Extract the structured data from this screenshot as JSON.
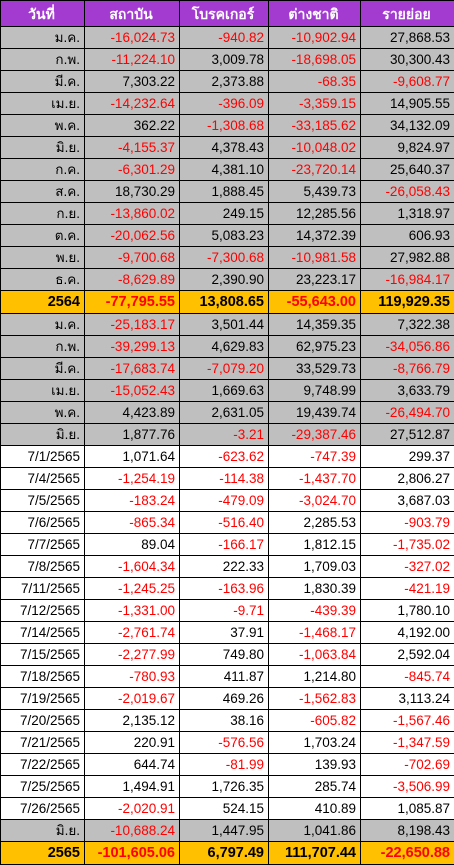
{
  "columns": [
    "วันที่",
    "สถาบัน",
    "โบรคเกอร์",
    "ต่างชาติ",
    "รายย่อย"
  ],
  "rows": [
    {
      "type": "gray",
      "cells": [
        "ม.ค.",
        "-16,024.73",
        "-940.82",
        "-10,902.94",
        "27,868.53"
      ]
    },
    {
      "type": "gray",
      "cells": [
        "ก.พ.",
        "-11,224.10",
        "3,009.78",
        "-18,698.05",
        "30,300.43"
      ]
    },
    {
      "type": "gray",
      "cells": [
        "มี.ค.",
        "7,303.22",
        "2,373.88",
        "-68.35",
        "-9,608.77"
      ]
    },
    {
      "type": "gray",
      "cells": [
        "เม.ย.",
        "-14,232.64",
        "-396.09",
        "-3,359.15",
        "14,905.55"
      ]
    },
    {
      "type": "gray",
      "cells": [
        "พ.ค.",
        "362.22",
        "-1,308.68",
        "-33,185.62",
        "34,132.09"
      ]
    },
    {
      "type": "gray",
      "cells": [
        "มิ.ย.",
        "-4,155.37",
        "4,378.43",
        "-10,048.02",
        "9,824.97"
      ]
    },
    {
      "type": "gray",
      "cells": [
        "ก.ค.",
        "-6,301.29",
        "4,381.10",
        "-23,720.14",
        "25,640.37"
      ]
    },
    {
      "type": "gray",
      "cells": [
        "ส.ค.",
        "18,730.29",
        "1,888.45",
        "5,439.73",
        "-26,058.43"
      ]
    },
    {
      "type": "gray",
      "cells": [
        "ก.ย.",
        "-13,860.02",
        "249.15",
        "12,285.56",
        "1,318.97"
      ]
    },
    {
      "type": "gray",
      "cells": [
        "ต.ค.",
        "-20,062.56",
        "5,083.23",
        "14,372.39",
        "606.93"
      ]
    },
    {
      "type": "gray",
      "cells": [
        "พ.ย.",
        "-9,700.68",
        "-7,300.68",
        "-10,981.58",
        "27,982.88"
      ]
    },
    {
      "type": "gray",
      "cells": [
        "ธ.ค.",
        "-8,629.89",
        "2,390.90",
        "23,223.17",
        "-16,984.17"
      ]
    },
    {
      "type": "total",
      "cells": [
        "2564",
        "-77,795.55",
        "13,808.65",
        "-55,643.00",
        "119,929.35"
      ]
    },
    {
      "type": "gray",
      "cells": [
        "ม.ค.",
        "-25,183.17",
        "3,501.44",
        "14,359.35",
        "7,322.38"
      ]
    },
    {
      "type": "gray",
      "cells": [
        "ก.พ.",
        "-39,299.13",
        "4,629.83",
        "62,975.23",
        "-34,056.86"
      ]
    },
    {
      "type": "gray",
      "cells": [
        "มี.ค.",
        "-17,683.74",
        "-7,079.20",
        "33,529.73",
        "-8,766.79"
      ]
    },
    {
      "type": "gray",
      "cells": [
        "เม.ย.",
        "-15,052.43",
        "1,669.63",
        "9,748.99",
        "3,633.79"
      ]
    },
    {
      "type": "gray",
      "cells": [
        "พ.ค.",
        "4,423.89",
        "2,631.05",
        "19,439.74",
        "-26,494.70"
      ]
    },
    {
      "type": "gray",
      "cells": [
        "มิ.ย.",
        "1,877.76",
        "-3.21",
        "-29,387.46",
        "27,512.87"
      ]
    },
    {
      "type": "white",
      "cells": [
        "7/1/2565",
        "1,071.64",
        "-623.62",
        "-747.39",
        "299.37"
      ]
    },
    {
      "type": "white",
      "cells": [
        "7/4/2565",
        "-1,254.19",
        "-114.38",
        "-1,437.70",
        "2,806.27"
      ]
    },
    {
      "type": "white",
      "cells": [
        "7/5/2565",
        "-183.24",
        "-479.09",
        "-3,024.70",
        "3,687.03"
      ]
    },
    {
      "type": "white",
      "cells": [
        "7/6/2565",
        "-865.34",
        "-516.40",
        "2,285.53",
        "-903.79"
      ]
    },
    {
      "type": "white",
      "cells": [
        "7/7/2565",
        "89.04",
        "-166.17",
        "1,812.15",
        "-1,735.02"
      ]
    },
    {
      "type": "white",
      "cells": [
        "7/8/2565",
        "-1,604.34",
        "222.33",
        "1,709.03",
        "-327.02"
      ]
    },
    {
      "type": "white",
      "cells": [
        "7/11/2565",
        "-1,245.25",
        "-163.96",
        "1,830.39",
        "-421.19"
      ]
    },
    {
      "type": "white",
      "cells": [
        "7/12/2565",
        "-1,331.00",
        "-9.71",
        "-439.39",
        "1,780.10"
      ]
    },
    {
      "type": "white",
      "cells": [
        "7/14/2565",
        "-2,761.74",
        "37.91",
        "-1,468.17",
        "4,192.00"
      ]
    },
    {
      "type": "white",
      "cells": [
        "7/15/2565",
        "-2,277.99",
        "749.80",
        "-1,063.84",
        "2,592.04"
      ]
    },
    {
      "type": "white",
      "cells": [
        "7/18/2565",
        "-780.93",
        "411.87",
        "1,214.80",
        "-845.74"
      ]
    },
    {
      "type": "white",
      "cells": [
        "7/19/2565",
        "-2,019.67",
        "469.26",
        "-1,562.83",
        "3,113.24"
      ]
    },
    {
      "type": "white",
      "cells": [
        "7/20/2565",
        "2,135.12",
        "38.16",
        "-605.82",
        "-1,567.46"
      ]
    },
    {
      "type": "white",
      "cells": [
        "7/21/2565",
        "220.91",
        "-576.56",
        "1,703.24",
        "-1,347.59"
      ]
    },
    {
      "type": "white",
      "cells": [
        "7/22/2565",
        "644.74",
        "-81.99",
        "139.93",
        "-702.69"
      ]
    },
    {
      "type": "white",
      "cells": [
        "7/25/2565",
        "1,494.91",
        "1,726.35",
        "285.74",
        "-3,506.99"
      ]
    },
    {
      "type": "white",
      "cells": [
        "7/26/2565",
        "-2,020.91",
        "524.15",
        "410.89",
        "1,085.87"
      ]
    },
    {
      "type": "gray",
      "cells": [
        "มิ.ย.",
        "-10,688.24",
        "1,447.95",
        "1,041.86",
        "8,198.43"
      ]
    },
    {
      "type": "total",
      "cells": [
        "2565",
        "-101,605.06",
        "6,797.49",
        "111,707.44",
        "-22,650.88"
      ]
    }
  ],
  "colors": {
    "header": "#a33bd0",
    "gray": "#bfbfbf",
    "total": "#ffc000",
    "negative": "#ff0000"
  }
}
